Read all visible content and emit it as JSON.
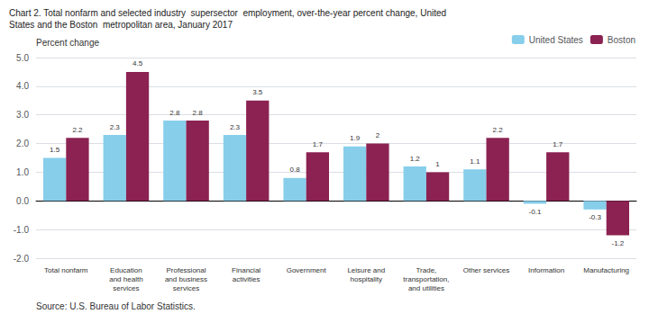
{
  "chart_data": {
    "type": "bar",
    "title": "Chart 2. Total nonfarm and selected industry  supersector  employment, over-the-year percent change, United\nStates and the Boston  metropolitan area, January 2017",
    "ylabel": "Percent change",
    "annotations": [
      "Source: U.S. Bureau of Labor Statistics."
    ],
    "categories": [
      "Total nonfarm",
      "Education\nand health\nservices",
      "Professional\nand business\nservices",
      "Financial\nactivities",
      "Government",
      "Leisure and\nhospitality",
      "Trade,\ntransportation,\nand utilities",
      "Other services",
      "Information",
      "Manufacturing"
    ],
    "series": [
      {
        "name": "United States",
        "color": "#87CEEB",
        "values": [
          1.5,
          2.3,
          2.8,
          2.3,
          0.8,
          1.9,
          1.2,
          1.1,
          -0.1,
          -0.3
        ]
      },
      {
        "name": "Boston",
        "color": "#8B2252",
        "values": [
          2.2,
          4.5,
          2.8,
          3.5,
          1.7,
          2.0,
          1.0,
          2.2,
          1.7,
          -1.2
        ]
      }
    ],
    "ylim": [
      -2.0,
      5.0
    ],
    "yticks": [
      {
        "value": -2.0,
        "label": "-2.0"
      },
      {
        "value": -1.0,
        "label": "-1.0"
      },
      {
        "value": 0.0,
        "label": "0.0"
      },
      {
        "value": 1.0,
        "label": "1.0"
      },
      {
        "value": 2.0,
        "label": "2.0"
      },
      {
        "value": 3.0,
        "label": "3.0"
      },
      {
        "value": 4.0,
        "label": "4.0"
      },
      {
        "value": 5.0,
        "label": "5.0"
      }
    ],
    "grid": true,
    "legend": "upper right",
    "data_labels": true
  }
}
